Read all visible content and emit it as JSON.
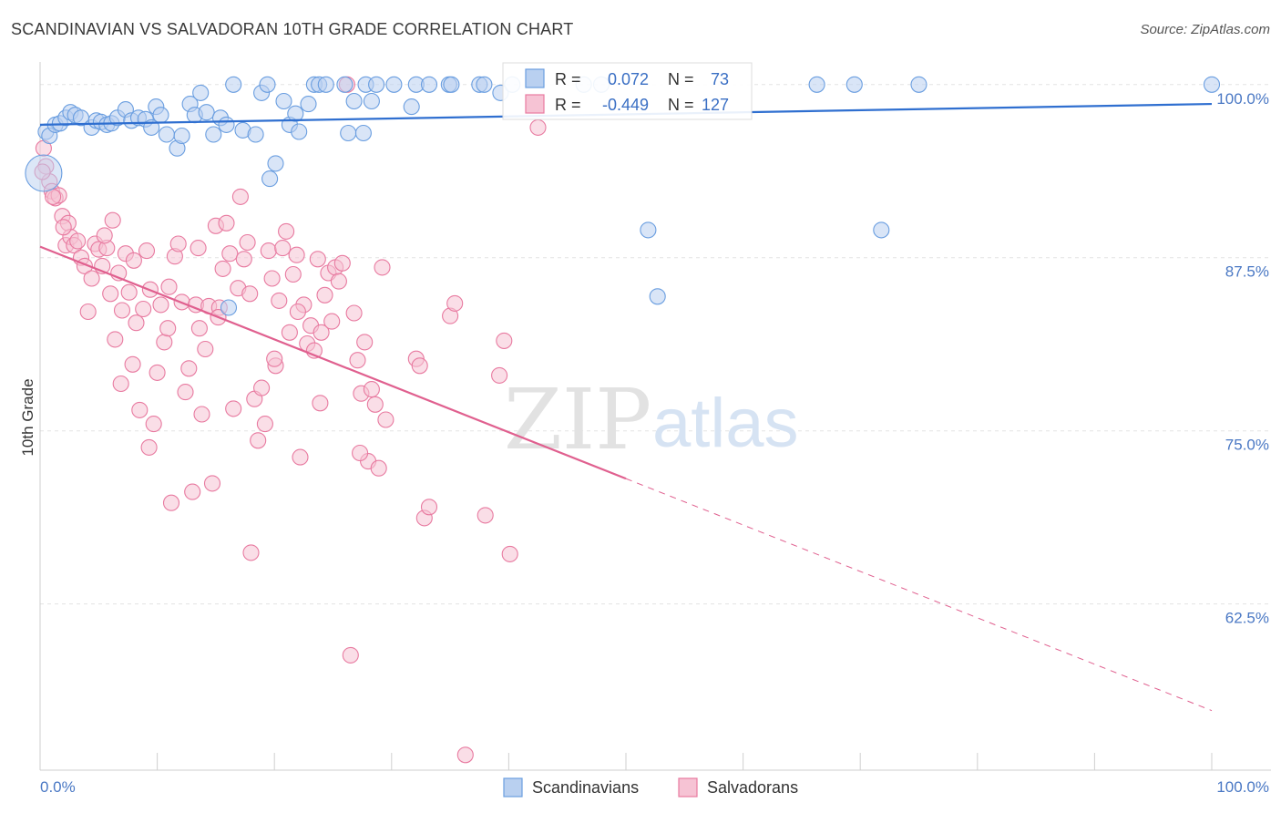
{
  "title": "SCANDINAVIAN VS SALVADORAN 10TH GRADE CORRELATION CHART",
  "source": "Source: ZipAtlas.com",
  "watermark": {
    "left": "ZIP",
    "right": "atlas"
  },
  "chart_data": {
    "type": "scatter",
    "ylabel": "10th Grade",
    "xlim": [
      0,
      100
    ],
    "ylim": [
      50.5,
      101.5
    ],
    "x_tick_labels": [
      "0.0%",
      "100.0%"
    ],
    "y_ticks": [
      {
        "value": 100.0,
        "label": "100.0%"
      },
      {
        "value": 87.5,
        "label": "87.5%"
      },
      {
        "value": 75.0,
        "label": "75.0%"
      },
      {
        "value": 62.5,
        "label": "62.5%"
      }
    ],
    "grid": true,
    "legend_position": "top-center",
    "series": [
      {
        "name": "Scandinavians",
        "color": "#6a9ee0",
        "fill": "#b9d0f0",
        "R": "0.072",
        "N": "73",
        "trend": {
          "x": [
            0,
            100
          ],
          "y": [
            97.1,
            98.6
          ],
          "dashed_from": null
        },
        "points": [
          [
            0.5,
            96.6
          ],
          [
            0.8,
            96.3
          ],
          [
            1.3,
            97.1
          ],
          [
            1.7,
            97.2
          ],
          [
            2.2,
            97.6
          ],
          [
            2.6,
            98.0
          ],
          [
            3.0,
            97.8
          ],
          [
            3.5,
            97.6
          ],
          [
            4.4,
            96.9
          ],
          [
            4.8,
            97.4
          ],
          [
            5.2,
            97.3
          ],
          [
            5.7,
            97.1
          ],
          [
            6.1,
            97.2
          ],
          [
            6.6,
            97.6
          ],
          [
            7.3,
            98.2
          ],
          [
            7.8,
            97.4
          ],
          [
            8.4,
            97.6
          ],
          [
            9.0,
            97.5
          ],
          [
            9.5,
            96.9
          ],
          [
            9.9,
            98.4
          ],
          [
            10.3,
            97.8
          ],
          [
            10.8,
            96.4
          ],
          [
            11.7,
            95.4
          ],
          [
            12.1,
            96.3
          ],
          [
            12.8,
            98.6
          ],
          [
            13.2,
            97.8
          ],
          [
            13.7,
            99.4
          ],
          [
            14.2,
            98.0
          ],
          [
            14.8,
            96.4
          ],
          [
            15.4,
            97.6
          ],
          [
            15.9,
            97.1
          ],
          [
            16.5,
            100.0
          ],
          [
            17.3,
            96.7
          ],
          [
            18.4,
            96.4
          ],
          [
            18.9,
            99.4
          ],
          [
            19.4,
            100.0
          ],
          [
            19.6,
            93.2
          ],
          [
            20.1,
            94.3
          ],
          [
            20.8,
            98.8
          ],
          [
            21.3,
            97.1
          ],
          [
            21.8,
            97.9
          ],
          [
            22.1,
            96.6
          ],
          [
            22.9,
            98.6
          ],
          [
            23.4,
            100.0
          ],
          [
            23.8,
            100.0
          ],
          [
            24.4,
            100.0
          ],
          [
            26.0,
            100.0
          ],
          [
            26.3,
            96.5
          ],
          [
            26.8,
            98.8
          ],
          [
            27.6,
            96.5
          ],
          [
            27.8,
            100.0
          ],
          [
            28.3,
            98.8
          ],
          [
            28.7,
            100.0
          ],
          [
            30.2,
            100.0
          ],
          [
            31.7,
            98.4
          ],
          [
            32.1,
            100.0
          ],
          [
            33.2,
            100.0
          ],
          [
            34.9,
            100.0
          ],
          [
            35.1,
            100.0
          ],
          [
            37.5,
            100.0
          ],
          [
            37.9,
            100.0
          ],
          [
            39.3,
            99.4
          ],
          [
            40.3,
            100.0
          ],
          [
            46.4,
            100.0
          ],
          [
            47.9,
            100.0
          ],
          [
            51.9,
            89.5
          ],
          [
            52.7,
            84.7
          ],
          [
            66.3,
            100.0
          ],
          [
            69.5,
            100.0
          ],
          [
            71.8,
            89.5
          ],
          [
            75.0,
            100.0
          ],
          [
            100.0,
            100.0
          ],
          [
            16.1,
            83.9
          ]
        ]
      },
      {
        "name": "Salvadorans",
        "color": "#e87aa0",
        "fill": "#f6c3d4",
        "R": "-0.449",
        "N": "127",
        "trend": {
          "x": [
            0,
            100
          ],
          "y": [
            88.3,
            54.8
          ],
          "dashed_from": 50.0
        },
        "points": [
          [
            0.3,
            95.4
          ],
          [
            0.5,
            94.1
          ],
          [
            0.8,
            93.0
          ],
          [
            1.0,
            92.3
          ],
          [
            1.3,
            91.8
          ],
          [
            1.6,
            92.0
          ],
          [
            1.9,
            90.5
          ],
          [
            2.2,
            88.4
          ],
          [
            2.4,
            90.0
          ],
          [
            2.6,
            89.0
          ],
          [
            2.9,
            88.4
          ],
          [
            3.2,
            88.7
          ],
          [
            3.5,
            87.5
          ],
          [
            3.8,
            86.9
          ],
          [
            4.1,
            83.6
          ],
          [
            4.4,
            86.0
          ],
          [
            4.7,
            88.5
          ],
          [
            5.0,
            88.1
          ],
          [
            5.3,
            86.9
          ],
          [
            5.7,
            88.2
          ],
          [
            6.0,
            84.9
          ],
          [
            6.2,
            90.2
          ],
          [
            6.4,
            81.6
          ],
          [
            6.7,
            86.4
          ],
          [
            7.0,
            83.7
          ],
          [
            7.3,
            87.8
          ],
          [
            7.6,
            85.0
          ],
          [
            7.9,
            79.8
          ],
          [
            8.2,
            82.8
          ],
          [
            8.5,
            76.5
          ],
          [
            8.8,
            83.8
          ],
          [
            9.1,
            88.0
          ],
          [
            9.4,
            85.2
          ],
          [
            9.7,
            75.5
          ],
          [
            10.0,
            79.2
          ],
          [
            10.3,
            84.1
          ],
          [
            10.6,
            81.4
          ],
          [
            10.9,
            82.4
          ],
          [
            11.2,
            69.8
          ],
          [
            11.5,
            87.6
          ],
          [
            11.8,
            88.5
          ],
          [
            12.1,
            84.3
          ],
          [
            12.4,
            77.8
          ],
          [
            12.7,
            79.5
          ],
          [
            13.0,
            70.6
          ],
          [
            13.3,
            84.1
          ],
          [
            13.6,
            82.4
          ],
          [
            13.8,
            76.2
          ],
          [
            14.1,
            80.9
          ],
          [
            14.4,
            84.0
          ],
          [
            14.7,
            71.2
          ],
          [
            15.0,
            89.8
          ],
          [
            15.3,
            83.9
          ],
          [
            15.6,
            86.7
          ],
          [
            15.9,
            90.0
          ],
          [
            16.2,
            87.8
          ],
          [
            16.5,
            76.6
          ],
          [
            16.9,
            85.3
          ],
          [
            17.1,
            91.9
          ],
          [
            17.4,
            87.4
          ],
          [
            17.7,
            88.6
          ],
          [
            18.0,
            66.2
          ],
          [
            18.3,
            77.3
          ],
          [
            18.6,
            74.3
          ],
          [
            18.9,
            78.1
          ],
          [
            19.2,
            75.5
          ],
          [
            19.5,
            88.0
          ],
          [
            19.8,
            86.0
          ],
          [
            20.1,
            79.7
          ],
          [
            20.4,
            84.4
          ],
          [
            20.7,
            88.2
          ],
          [
            21.0,
            89.4
          ],
          [
            21.3,
            82.1
          ],
          [
            21.6,
            86.3
          ],
          [
            21.9,
            87.7
          ],
          [
            22.2,
            73.1
          ],
          [
            22.5,
            84.1
          ],
          [
            22.8,
            81.3
          ],
          [
            23.1,
            82.6
          ],
          [
            23.4,
            80.8
          ],
          [
            23.7,
            87.4
          ],
          [
            24.0,
            82.1
          ],
          [
            24.3,
            84.8
          ],
          [
            24.6,
            86.4
          ],
          [
            24.9,
            82.9
          ],
          [
            25.2,
            86.8
          ],
          [
            25.5,
            85.8
          ],
          [
            25.8,
            87.1
          ],
          [
            26.2,
            100.0
          ],
          [
            26.5,
            58.8
          ],
          [
            26.8,
            83.5
          ],
          [
            27.1,
            80.1
          ],
          [
            27.4,
            77.7
          ],
          [
            27.7,
            81.4
          ],
          [
            28.0,
            72.8
          ],
          [
            28.3,
            78.0
          ],
          [
            28.6,
            76.9
          ],
          [
            28.9,
            72.3
          ],
          [
            29.2,
            86.8
          ],
          [
            29.5,
            75.8
          ],
          [
            32.1,
            80.2
          ],
          [
            32.4,
            79.7
          ],
          [
            32.8,
            68.7
          ],
          [
            33.2,
            69.5
          ],
          [
            35.0,
            83.3
          ],
          [
            35.4,
            84.2
          ],
          [
            36.3,
            51.6
          ],
          [
            38.0,
            68.9
          ],
          [
            39.2,
            79.0
          ],
          [
            39.6,
            81.5
          ],
          [
            40.1,
            66.1
          ],
          [
            42.5,
            96.9
          ],
          [
            0.2,
            93.7
          ],
          [
            1.1,
            91.9
          ],
          [
            2.0,
            89.7
          ],
          [
            5.5,
            89.1
          ],
          [
            8.0,
            87.3
          ],
          [
            11.0,
            85.4
          ],
          [
            13.5,
            88.2
          ],
          [
            15.2,
            83.2
          ],
          [
            17.9,
            84.9
          ],
          [
            20.0,
            80.2
          ],
          [
            22.0,
            83.6
          ],
          [
            23.9,
            77.0
          ],
          [
            27.3,
            73.4
          ],
          [
            6.9,
            78.4
          ],
          [
            9.3,
            73.8
          ]
        ]
      }
    ]
  }
}
